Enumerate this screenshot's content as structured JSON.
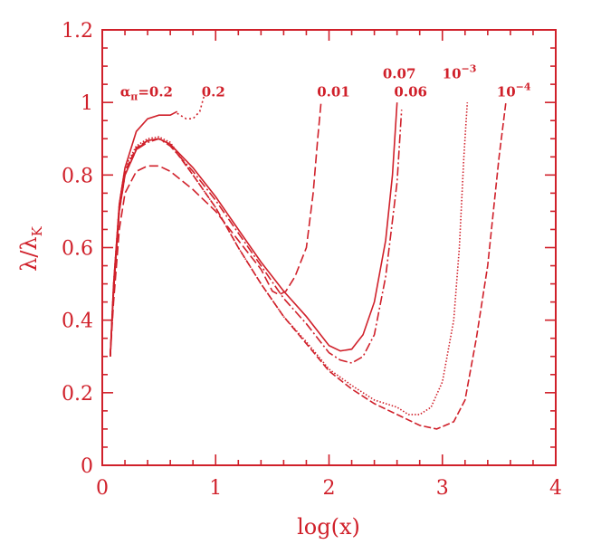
{
  "chart_data": {
    "type": "line",
    "xlabel": "log(x)",
    "ylabel_main": "λ/λ",
    "ylabel_sub": "K",
    "xlim": [
      0,
      4
    ],
    "ylim": [
      0,
      1.2
    ],
    "x_ticks": [
      {
        "value": 0,
        "label": "0"
      },
      {
        "value": 1,
        "label": "1"
      },
      {
        "value": 2,
        "label": "2"
      },
      {
        "value": 3,
        "label": "3"
      },
      {
        "value": 4,
        "label": "4"
      }
    ],
    "y_ticks": [
      {
        "value": 0,
        "label": "0"
      },
      {
        "value": 0.2,
        "label": "0.2"
      },
      {
        "value": 0.4,
        "label": "0.4"
      },
      {
        "value": 0.6,
        "label": "0.6"
      },
      {
        "value": 0.8,
        "label": "0.8"
      },
      {
        "value": 1.0,
        "label": "1"
      },
      {
        "value": 1.2,
        "label": "1.2"
      }
    ],
    "colors": {
      "foreground": "#d0202a"
    },
    "annotations": [
      {
        "id": "alpha",
        "greek": "α",
        "sub": "π",
        "rest": "=0.2",
        "x": 0.39,
        "y": 1.017
      },
      {
        "id": "a02b",
        "text": "0.2",
        "x": 0.98,
        "y": 1.017
      },
      {
        "id": "a001",
        "text": "0.01",
        "x": 2.04,
        "y": 1.017
      },
      {
        "id": "a007",
        "text": "0.07",
        "x": 2.62,
        "y": 1.067
      },
      {
        "id": "a006",
        "text": "0.06",
        "x": 2.72,
        "y": 1.017
      },
      {
        "id": "a1e3",
        "base": "10",
        "exp": "−3",
        "x": 3.15,
        "y": 1.067
      },
      {
        "id": "a1e4",
        "base": "10",
        "exp": "−4",
        "x": 3.63,
        "y": 1.017
      }
    ],
    "series": [
      {
        "id": "s1",
        "dash": "",
        "points": [
          [
            0.07,
            0.3
          ],
          [
            0.1,
            0.5
          ],
          [
            0.15,
            0.72
          ],
          [
            0.2,
            0.82
          ],
          [
            0.3,
            0.92
          ],
          [
            0.4,
            0.955
          ],
          [
            0.5,
            0.965
          ],
          [
            0.6,
            0.965
          ],
          [
            0.66,
            0.975
          ]
        ]
      },
      {
        "id": "s2",
        "dash": "2,3",
        "points": [
          [
            0.66,
            0.97
          ],
          [
            0.74,
            0.955
          ],
          [
            0.8,
            0.955
          ],
          [
            0.86,
            0.975
          ],
          [
            0.9,
            1.02
          ]
        ]
      },
      {
        "id": "s3",
        "dash": "",
        "points": [
          [
            0.07,
            0.3
          ],
          [
            0.1,
            0.48
          ],
          [
            0.15,
            0.7
          ],
          [
            0.2,
            0.8
          ],
          [
            0.3,
            0.87
          ],
          [
            0.4,
            0.895
          ],
          [
            0.5,
            0.9
          ],
          [
            0.6,
            0.885
          ],
          [
            0.8,
            0.82
          ],
          [
            1.0,
            0.74
          ],
          [
            1.2,
            0.65
          ],
          [
            1.4,
            0.56
          ],
          [
            1.6,
            0.48
          ],
          [
            1.8,
            0.41
          ],
          [
            2.0,
            0.33
          ],
          [
            2.1,
            0.315
          ],
          [
            2.2,
            0.32
          ],
          [
            2.3,
            0.36
          ],
          [
            2.4,
            0.45
          ],
          [
            2.5,
            0.62
          ],
          [
            2.56,
            0.8
          ],
          [
            2.6,
            1.0
          ]
        ]
      },
      {
        "id": "s4",
        "dash": "10,3,2,3",
        "points": [
          [
            0.07,
            0.3
          ],
          [
            0.1,
            0.48
          ],
          [
            0.15,
            0.7
          ],
          [
            0.2,
            0.8
          ],
          [
            0.3,
            0.87
          ],
          [
            0.4,
            0.89
          ],
          [
            0.5,
            0.9
          ],
          [
            0.6,
            0.88
          ],
          [
            0.8,
            0.81
          ],
          [
            1.0,
            0.73
          ],
          [
            1.2,
            0.64
          ],
          [
            1.4,
            0.55
          ],
          [
            1.6,
            0.46
          ],
          [
            1.8,
            0.39
          ],
          [
            2.0,
            0.31
          ],
          [
            2.1,
            0.29
          ],
          [
            2.2,
            0.282
          ],
          [
            2.3,
            0.3
          ],
          [
            2.4,
            0.36
          ],
          [
            2.5,
            0.52
          ],
          [
            2.6,
            0.78
          ],
          [
            2.64,
            0.98
          ]
        ]
      },
      {
        "id": "s5",
        "dash": "10,4",
        "points": [
          [
            0.07,
            0.3
          ],
          [
            0.1,
            0.45
          ],
          [
            0.15,
            0.65
          ],
          [
            0.2,
            0.75
          ],
          [
            0.3,
            0.81
          ],
          [
            0.4,
            0.825
          ],
          [
            0.5,
            0.825
          ],
          [
            0.6,
            0.81
          ],
          [
            0.8,
            0.76
          ],
          [
            1.0,
            0.7
          ],
          [
            1.2,
            0.62
          ],
          [
            1.4,
            0.54
          ],
          [
            1.5,
            0.48
          ],
          [
            1.56,
            0.47
          ],
          [
            1.62,
            0.48
          ],
          [
            1.7,
            0.52
          ],
          [
            1.8,
            0.6
          ],
          [
            1.86,
            0.75
          ],
          [
            1.9,
            0.9
          ],
          [
            1.93,
            1.0
          ]
        ]
      },
      {
        "id": "s6",
        "dash": "1.5,2",
        "points": [
          [
            0.07,
            0.3
          ],
          [
            0.1,
            0.5
          ],
          [
            0.15,
            0.72
          ],
          [
            0.2,
            0.82
          ],
          [
            0.3,
            0.88
          ],
          [
            0.4,
            0.9
          ],
          [
            0.5,
            0.905
          ],
          [
            0.6,
            0.89
          ],
          [
            0.8,
            0.8
          ],
          [
            1.0,
            0.71
          ],
          [
            1.2,
            0.6
          ],
          [
            1.4,
            0.5
          ],
          [
            1.6,
            0.41
          ],
          [
            1.8,
            0.34
          ],
          [
            2.0,
            0.265
          ],
          [
            2.2,
            0.22
          ],
          [
            2.4,
            0.18
          ],
          [
            2.6,
            0.16
          ],
          [
            2.7,
            0.14
          ],
          [
            2.8,
            0.14
          ],
          [
            2.9,
            0.16
          ],
          [
            3.0,
            0.23
          ],
          [
            3.1,
            0.4
          ],
          [
            3.15,
            0.6
          ],
          [
            3.19,
            0.85
          ],
          [
            3.22,
            1.0
          ]
        ]
      },
      {
        "id": "s7",
        "dash": "8,3",
        "points": [
          [
            0.07,
            0.3
          ],
          [
            0.1,
            0.49
          ],
          [
            0.15,
            0.71
          ],
          [
            0.2,
            0.81
          ],
          [
            0.3,
            0.875
          ],
          [
            0.4,
            0.895
          ],
          [
            0.5,
            0.9
          ],
          [
            0.6,
            0.885
          ],
          [
            0.8,
            0.8
          ],
          [
            1.0,
            0.71
          ],
          [
            1.2,
            0.6
          ],
          [
            1.4,
            0.5
          ],
          [
            1.6,
            0.41
          ],
          [
            1.8,
            0.335
          ],
          [
            2.0,
            0.26
          ],
          [
            2.2,
            0.21
          ],
          [
            2.4,
            0.17
          ],
          [
            2.6,
            0.14
          ],
          [
            2.8,
            0.11
          ],
          [
            2.95,
            0.1
          ],
          [
            3.1,
            0.12
          ],
          [
            3.2,
            0.18
          ],
          [
            3.3,
            0.35
          ],
          [
            3.4,
            0.55
          ],
          [
            3.5,
            0.85
          ],
          [
            3.56,
            1.0
          ]
        ]
      }
    ]
  }
}
